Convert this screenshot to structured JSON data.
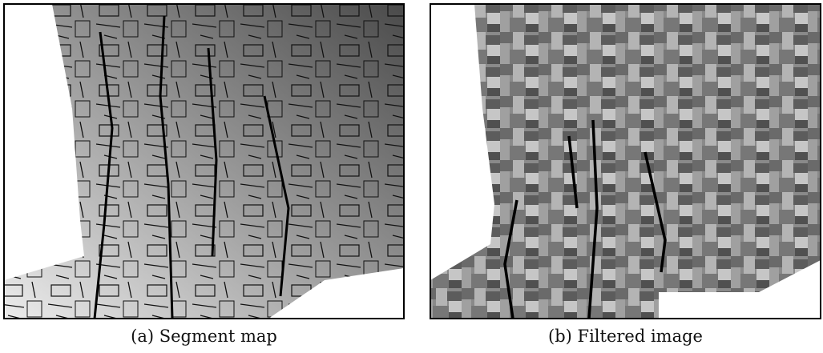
{
  "figure": {
    "panels": [
      {
        "caption": "(a) Segment map"
      },
      {
        "caption": "(b) Filtered image"
      }
    ]
  }
}
